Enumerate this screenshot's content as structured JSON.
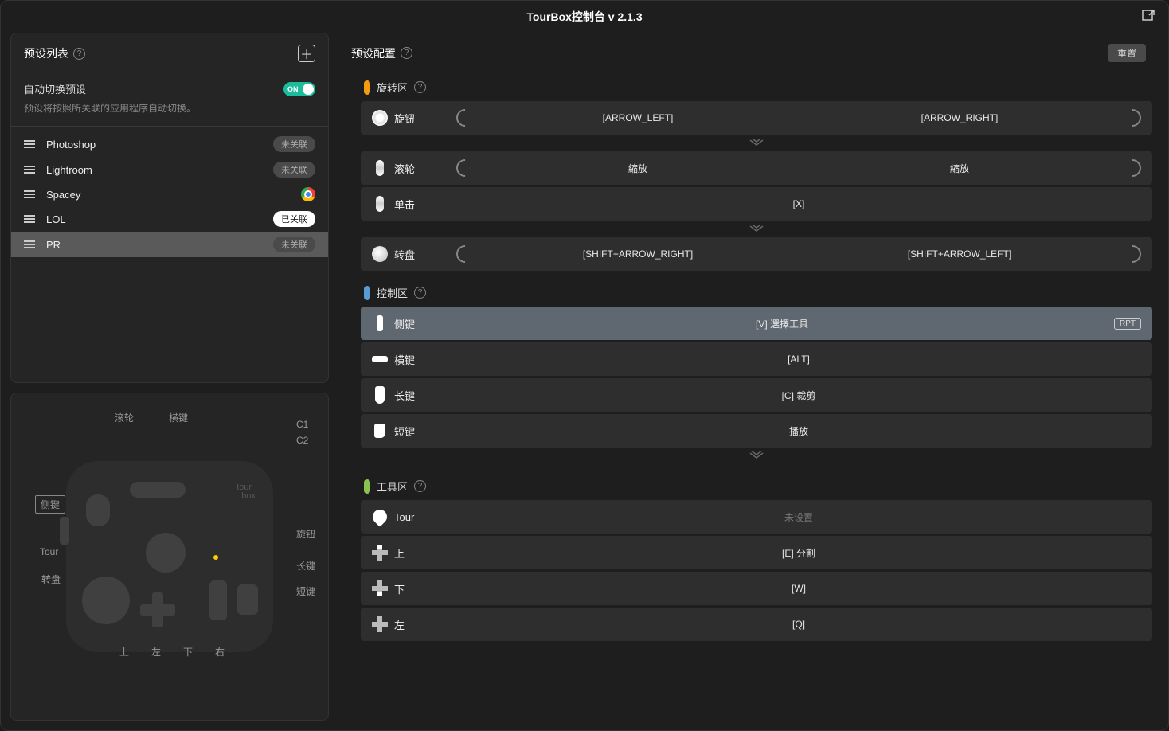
{
  "titlebar": {
    "title": "TourBox控制台 v 2.1.3"
  },
  "preset_panel": {
    "title": "预设列表",
    "auto_switch_label": "自动切换预设",
    "auto_switch_on": "ON",
    "auto_switch_desc": "预设将按照所关联的应用程序自动切换。",
    "items": [
      {
        "name": "Photoshop",
        "badge": "未关联",
        "badge_style": "gray"
      },
      {
        "name": "Lightroom",
        "badge": "未关联",
        "badge_style": "gray"
      },
      {
        "name": "Spacey",
        "badge": "",
        "badge_style": "chrome"
      },
      {
        "name": "LOL",
        "badge": "已关联",
        "badge_style": "white"
      },
      {
        "name": "PR",
        "badge": "未关联",
        "badge_style": "gray",
        "active": true
      }
    ]
  },
  "device": {
    "labels": {
      "scroll": "滚轮",
      "hkey": "横键",
      "c1": "C1",
      "c2": "C2",
      "sidekey": "侧键",
      "tour": "Tour",
      "dial": "转盘",
      "knob": "旋钮",
      "long": "长键",
      "short": "短键",
      "up": "上",
      "left": "左",
      "down": "下",
      "right": "右"
    }
  },
  "config": {
    "title": "预设配置",
    "reset": "重置",
    "sections": [
      {
        "title": "旋转区",
        "marker_color": "#f39c12",
        "rows": [
          {
            "type": "rotate",
            "icon": "knob",
            "label": "旋钮",
            "ccw": "[ARROW_LEFT]",
            "cw": "[ARROW_RIGHT]"
          },
          {
            "type": "sep"
          },
          {
            "type": "rotate",
            "icon": "wheel",
            "label": "滚轮",
            "ccw": "縮放",
            "cw": "縮放"
          },
          {
            "type": "single",
            "icon": "wheel",
            "label": "单击",
            "action": "[X]"
          },
          {
            "type": "sep"
          },
          {
            "type": "rotate",
            "icon": "dial",
            "label": "转盘",
            "ccw": "[SHIFT+ARROW_RIGHT]",
            "cw": "[SHIFT+ARROW_LEFT]"
          }
        ]
      },
      {
        "title": "控制区",
        "marker_color": "#5b9bd5",
        "rows": [
          {
            "type": "single",
            "icon": "sidekey",
            "label": "侧键",
            "action": "[V] 選擇工具",
            "highlight": true,
            "rpt": "RPT"
          },
          {
            "type": "single",
            "icon": "hkey",
            "label": "横键",
            "action": "[ALT]"
          },
          {
            "type": "single",
            "icon": "longkey",
            "label": "长键",
            "action": "[C] 裁剪"
          },
          {
            "type": "single",
            "icon": "shortkey",
            "label": "短键",
            "action": "播放"
          },
          {
            "type": "sep"
          }
        ]
      },
      {
        "title": "工具区",
        "marker_color": "#8cc152",
        "rows": [
          {
            "type": "single",
            "icon": "tour",
            "label": "Tour",
            "action": "未设置",
            "unset": true
          },
          {
            "type": "single",
            "icon": "dpad-up",
            "label": "上",
            "action": "[E] 分割"
          },
          {
            "type": "single",
            "icon": "dpad-down",
            "label": "下",
            "action": "[W]"
          },
          {
            "type": "single",
            "icon": "dpad-left",
            "label": "左",
            "action": "[Q]"
          }
        ]
      }
    ]
  }
}
